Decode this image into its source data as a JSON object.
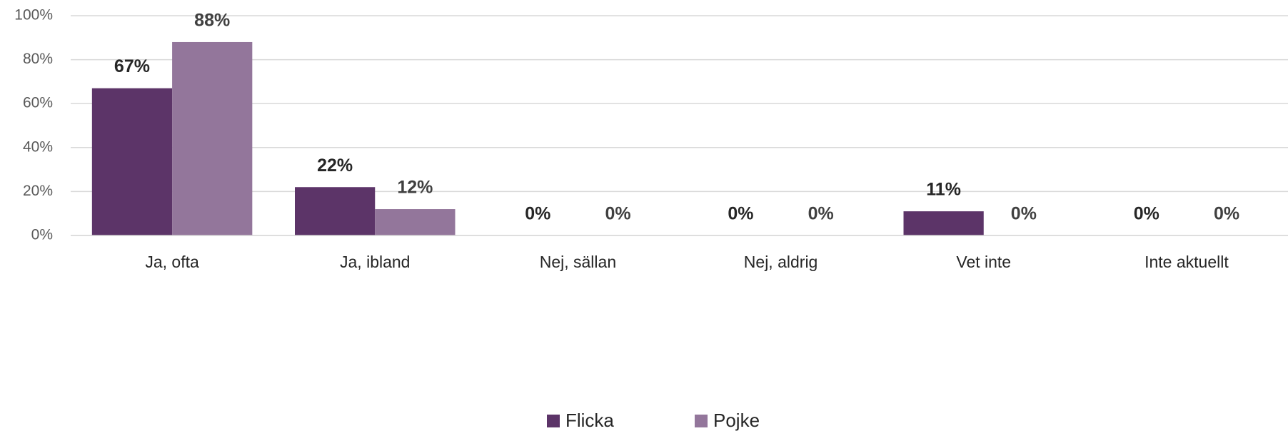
{
  "chart_data": {
    "type": "bar",
    "categories": [
      "Ja, ofta",
      "Ja, ibland",
      "Nej, sällan",
      "Nej, aldrig",
      "Vet inte",
      "Inte aktuellt"
    ],
    "series": [
      {
        "name": "Flicka",
        "color": "#5c3468",
        "values": [
          67,
          22,
          0,
          0,
          11,
          0
        ],
        "value_labels": [
          "67%",
          "22%",
          "0%",
          "0%",
          "11%",
          "0%"
        ]
      },
      {
        "name": "Pojke",
        "color": "#93769b",
        "values": [
          88,
          12,
          0,
          0,
          0,
          0
        ],
        "value_labels": [
          "88%",
          "12%",
          "0%",
          "0%",
          "0%",
          "0%"
        ]
      }
    ],
    "ylim": [
      0,
      100
    ],
    "yticks": [
      {
        "value": 0,
        "label": "0%"
      },
      {
        "value": 20,
        "label": "20%"
      },
      {
        "value": 40,
        "label": "40%"
      },
      {
        "value": 60,
        "label": "60%"
      },
      {
        "value": 80,
        "label": "80%"
      },
      {
        "value": 100,
        "label": "100%"
      }
    ],
    "grid": true,
    "legend": "bottom"
  }
}
